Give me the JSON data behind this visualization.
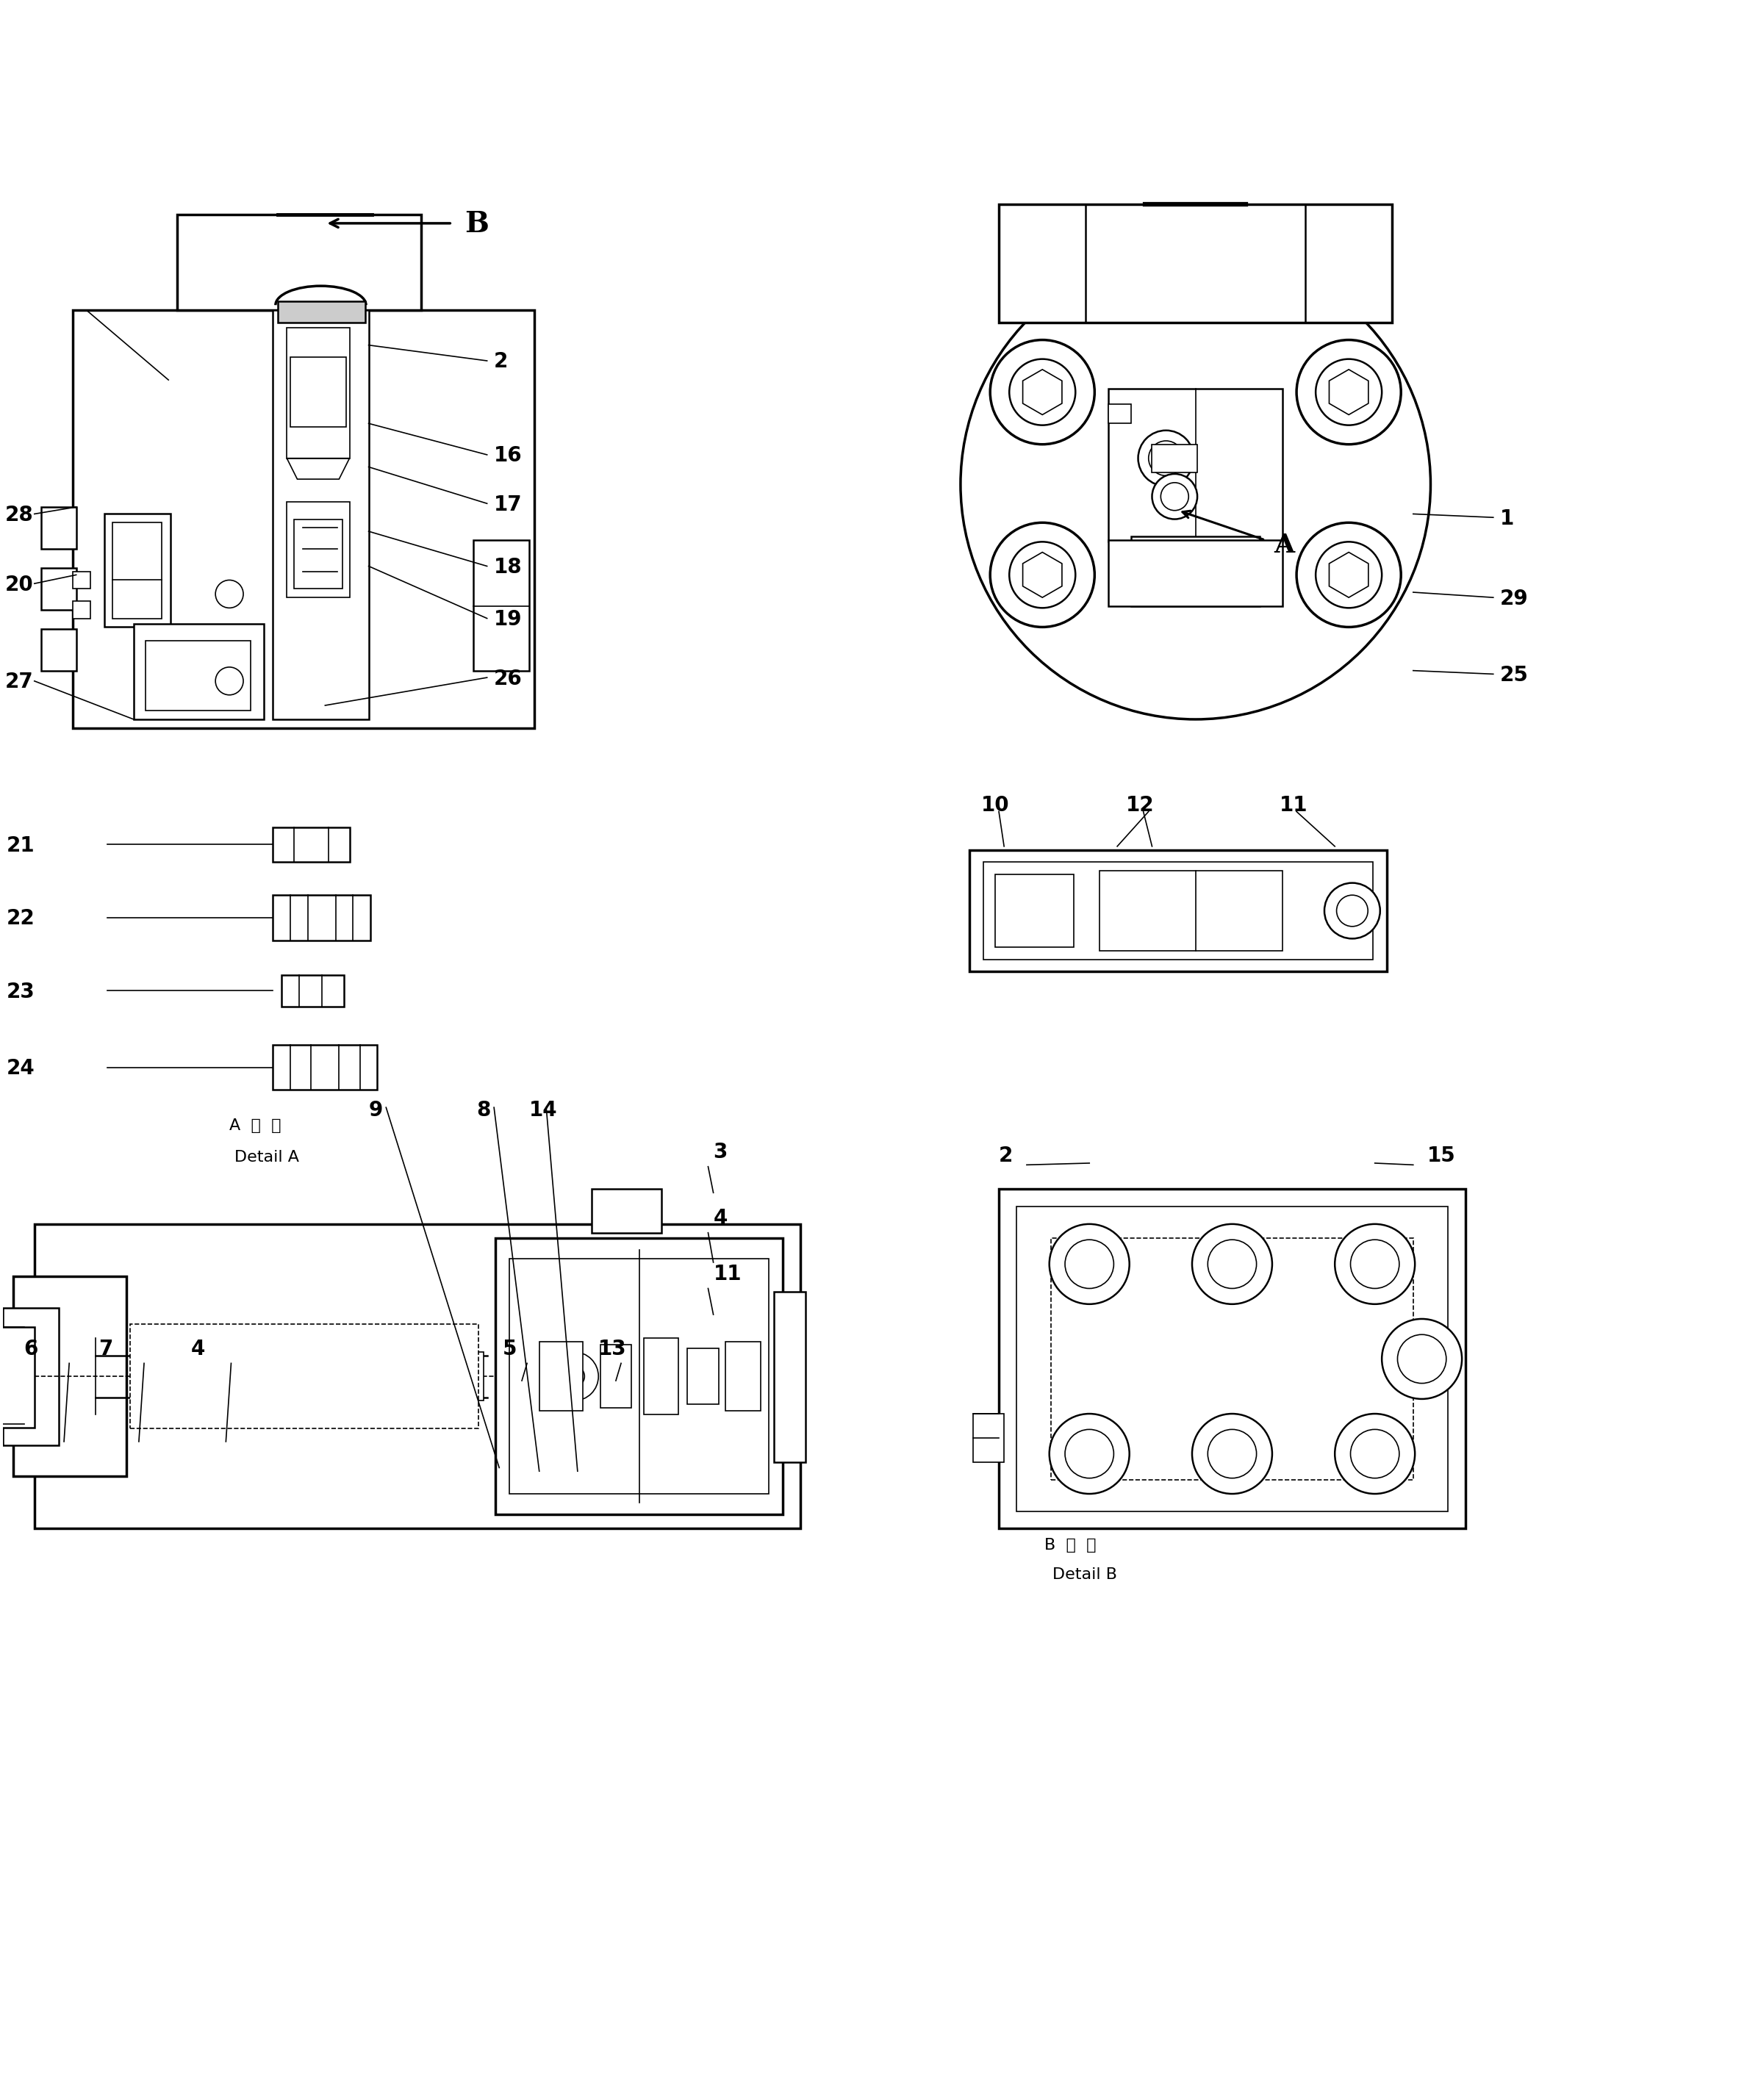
{
  "background_color": "#ffffff",
  "line_color": "#000000",
  "figure_width": 23.77,
  "figure_height": 28.58,
  "lw_thick": 2.5,
  "lw_med": 1.8,
  "lw_thin": 1.2,
  "label_fontsize": 20,
  "caption_fontsize": 16,
  "arrow_label_fontsize": 28,
  "detail_a_labels": [
    "21",
    "22",
    "23",
    "24"
  ],
  "detail_a_caption_jp": "A  詳  細",
  "detail_a_caption_en": "Detail A",
  "detail_b_caption_jp": "B  詳  細",
  "detail_b_caption_en": "Detail B",
  "top_left_right_labels": [
    "2",
    "16",
    "17",
    "18",
    "19",
    "26"
  ],
  "top_left_left_labels": [
    "28",
    "20",
    "27"
  ],
  "top_right_labels": [
    "1",
    "25",
    "29"
  ],
  "detail_b_small_labels": [
    "10",
    "12",
    "11"
  ],
  "bottom_left_top_labels": [
    "6",
    "7",
    "4",
    "5",
    "13"
  ],
  "bottom_left_right_labels": [
    "11",
    "4",
    "3"
  ],
  "bottom_left_bottom_labels": [
    "9",
    "8",
    "14"
  ],
  "bottom_right_labels": [
    "2",
    "15"
  ]
}
